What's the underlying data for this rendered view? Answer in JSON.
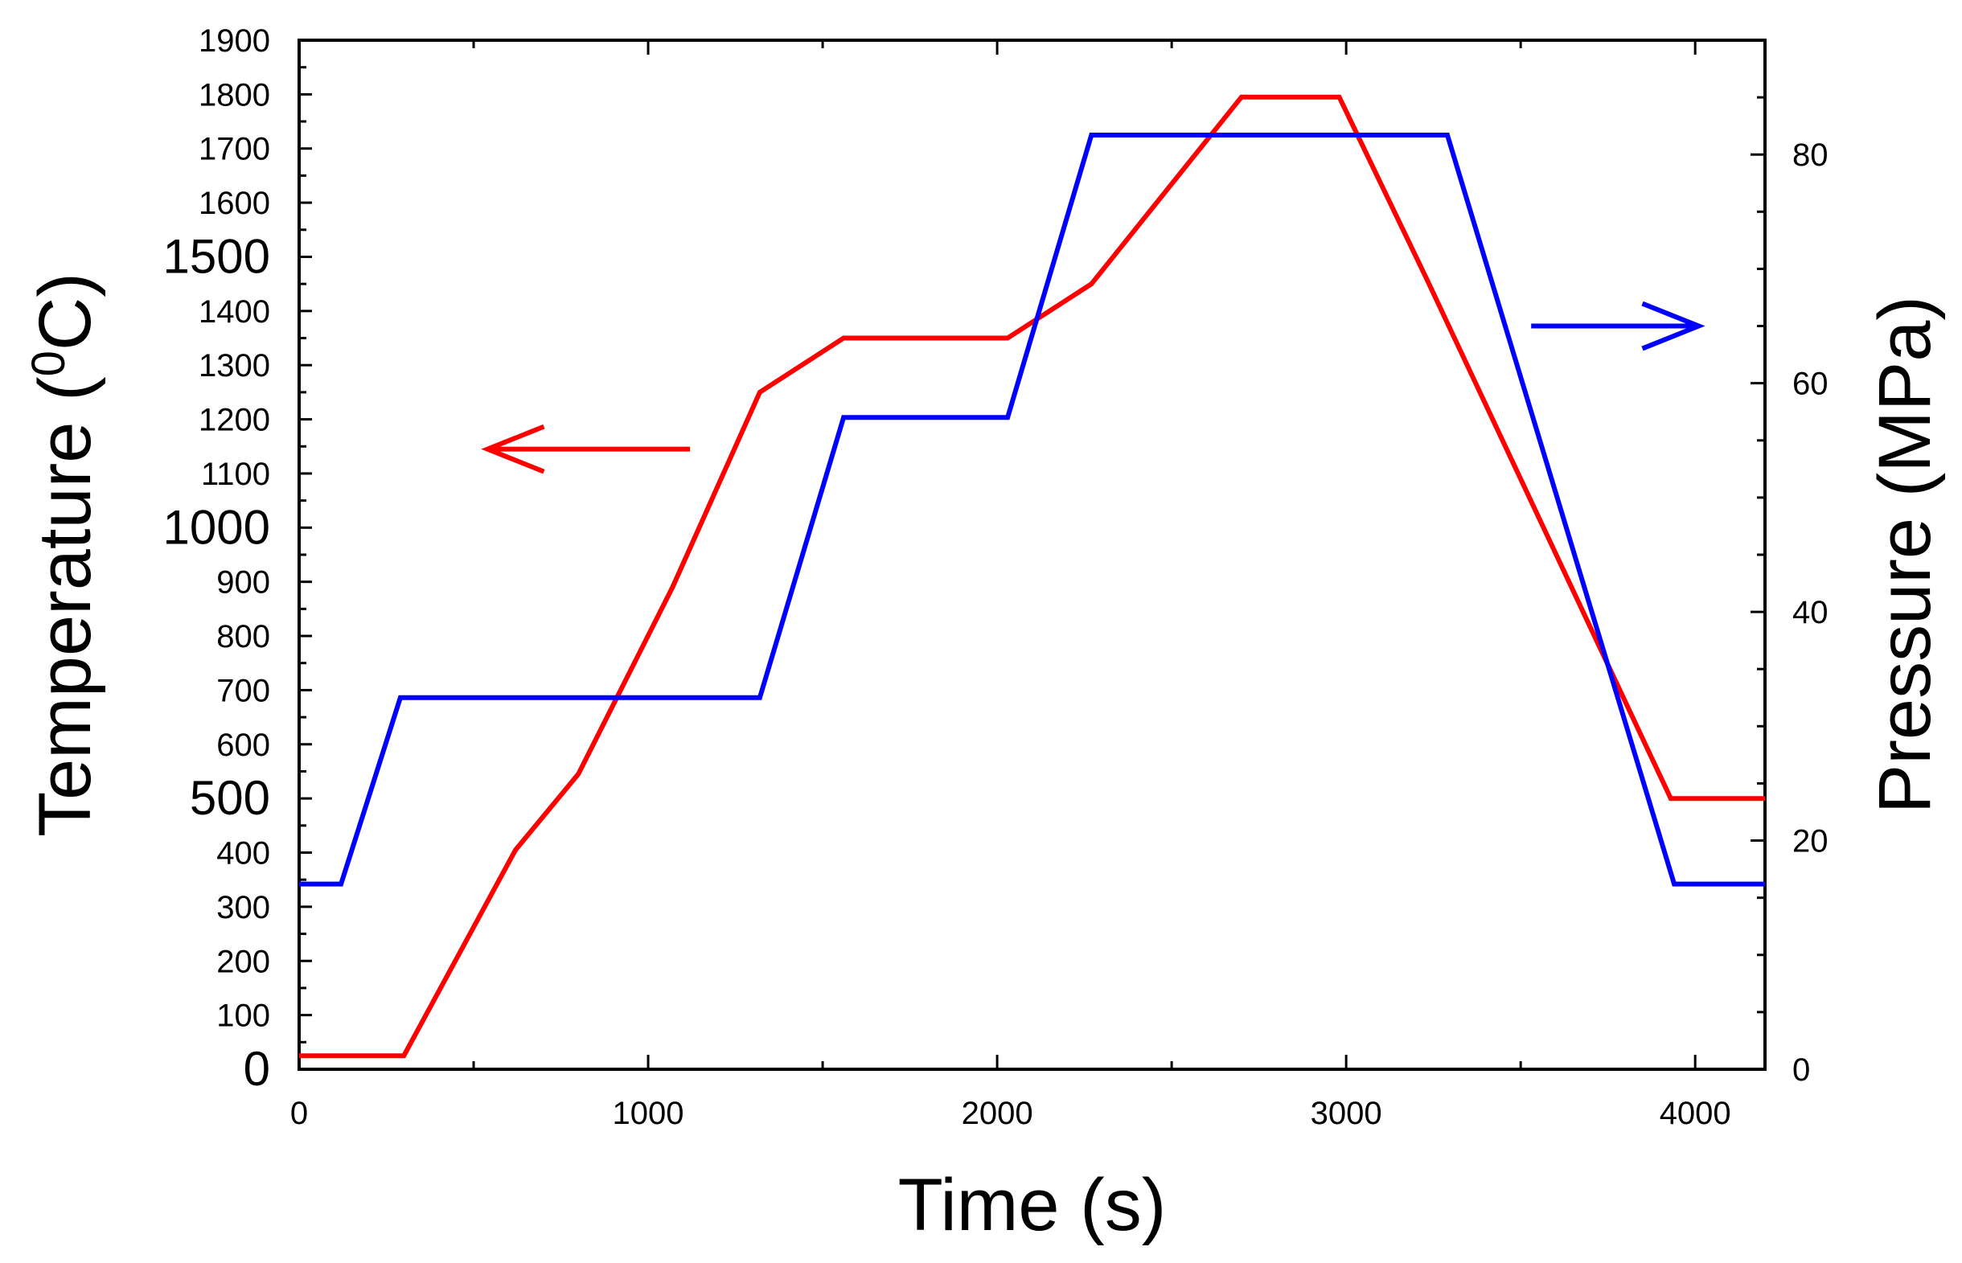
{
  "chart_data": {
    "type": "line",
    "xlabel": "Time (s)",
    "ylabel_left": {
      "main": "Temperature (",
      "sup": "0",
      "unit": "C)"
    },
    "ylabel_right": "Pressure (MPa)",
    "xlim": [
      0,
      4200
    ],
    "ylim_left": [
      0,
      1900
    ],
    "ylim_right": [
      0,
      90
    ],
    "x_ticks": [
      "0",
      "1000",
      "2000",
      "3000",
      "4000"
    ],
    "y_left_ticks": [
      "0",
      "100",
      "200",
      "300",
      "400",
      "500",
      "600",
      "700",
      "800",
      "900",
      "1000",
      "1100",
      "1200",
      "1300",
      "1400",
      "1500",
      "1600",
      "1700",
      "1800",
      "1900"
    ],
    "y_left_large_ticks": [
      "0",
      "500",
      "1000",
      "1500"
    ],
    "y_right_ticks": [
      "0",
      "20",
      "40",
      "60",
      "80"
    ],
    "series": [
      {
        "axis": "left",
        "color": "#ff0000",
        "points": [
          [
            0,
            25
          ],
          [
            300,
            25
          ],
          [
            620,
            405
          ],
          [
            800,
            545
          ],
          [
            1070,
            890
          ],
          [
            1320,
            1250
          ],
          [
            1560,
            1350
          ],
          [
            2030,
            1350
          ],
          [
            2270,
            1450
          ],
          [
            2700,
            1795
          ],
          [
            2980,
            1795
          ],
          [
            3230,
            1460
          ],
          [
            3930,
            500
          ],
          [
            4200,
            500
          ]
        ]
      },
      {
        "axis": "right",
        "color": "#0000ff",
        "points": [
          [
            0,
            16.2
          ],
          [
            120,
            16.2
          ],
          [
            290,
            32.5
          ],
          [
            1320,
            32.5
          ],
          [
            1560,
            57
          ],
          [
            2030,
            57
          ],
          [
            2270,
            81.7
          ],
          [
            3290,
            81.7
          ],
          [
            3940,
            16.2
          ],
          [
            4200,
            16.2
          ]
        ]
      }
    ],
    "annotations": [
      {
        "kind": "arrow",
        "direction": "left",
        "color": "#ff0000",
        "axis": "left",
        "x_from": 1120,
        "x_to": 540,
        "y": 1145
      },
      {
        "kind": "arrow",
        "direction": "right",
        "color": "#0000ff",
        "axis": "right",
        "x_from": 3530,
        "x_to": 4010,
        "y": 65
      }
    ]
  }
}
